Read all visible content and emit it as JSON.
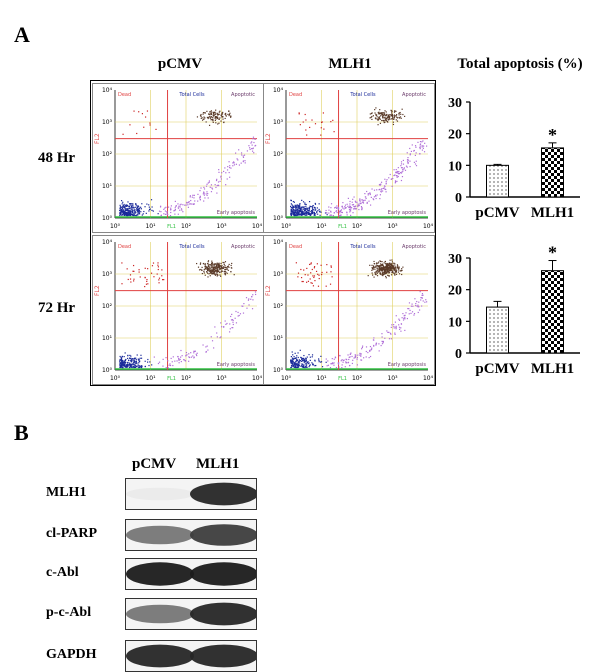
{
  "panel_a": {
    "letter": "A",
    "col_headers": [
      "pCMV",
      "MLH1"
    ],
    "row_headers": [
      "48 Hr",
      "72 Hr"
    ],
    "chart_title": "Total apoptosis (%)",
    "quadrant_labels": {
      "dead": "Dead",
      "total": "Total Cells",
      "apoptotic": "Apoptotic",
      "early": "Early apoptosis",
      "x_axis": "FL1",
      "y_axis": "FL2"
    },
    "axis_ticks": [
      "10⁰",
      "10¹",
      "10²",
      "10³",
      "10⁴"
    ],
    "colors": {
      "dead": "#cc2222",
      "apoptotic": "#5a3a28",
      "early": "#b070d8",
      "viable": "#1a2a9a",
      "gate_red": "#e04040",
      "gate_yellow": "#e0d060",
      "axis_green": "#30c040"
    }
  },
  "chart_data": [
    {
      "type": "bar",
      "categories": [
        "pCMV",
        "MLH1"
      ],
      "values": [
        10,
        15.5
      ],
      "errors": [
        0.3,
        1.6
      ],
      "significance": [
        "",
        "*"
      ],
      "title": "Total apoptosis (%)",
      "xlabel": "",
      "ylabel": "",
      "ylim": [
        0,
        30
      ],
      "yticks": [
        0,
        10,
        20,
        30
      ],
      "patterns": [
        "dots",
        "checker"
      ],
      "grid": false,
      "legend": "none"
    },
    {
      "type": "bar",
      "categories": [
        "pCMV",
        "MLH1"
      ],
      "values": [
        14.5,
        26
      ],
      "errors": [
        1.8,
        3.2
      ],
      "significance": [
        "",
        "*"
      ],
      "title": "",
      "xlabel": "",
      "ylabel": "",
      "ylim": [
        0,
        30
      ],
      "yticks": [
        0,
        10,
        20,
        30
      ],
      "patterns": [
        "dots",
        "checker"
      ],
      "grid": false,
      "legend": "none"
    }
  ],
  "panel_b": {
    "letter": "B",
    "lane_headers": [
      "pCMV",
      "MLH1"
    ],
    "blots": [
      {
        "label": "MLH1",
        "band_intensity": [
          0.05,
          0.9
        ]
      },
      {
        "label": "cl-PARP",
        "band_intensity": [
          0.55,
          0.8
        ]
      },
      {
        "label": "c-Abl",
        "band_intensity": [
          0.95,
          0.95
        ]
      },
      {
        "label": "p-c-Abl",
        "band_intensity": [
          0.55,
          0.9
        ]
      },
      {
        "label": "GAPDH",
        "band_intensity": [
          0.9,
          0.9
        ]
      }
    ]
  }
}
